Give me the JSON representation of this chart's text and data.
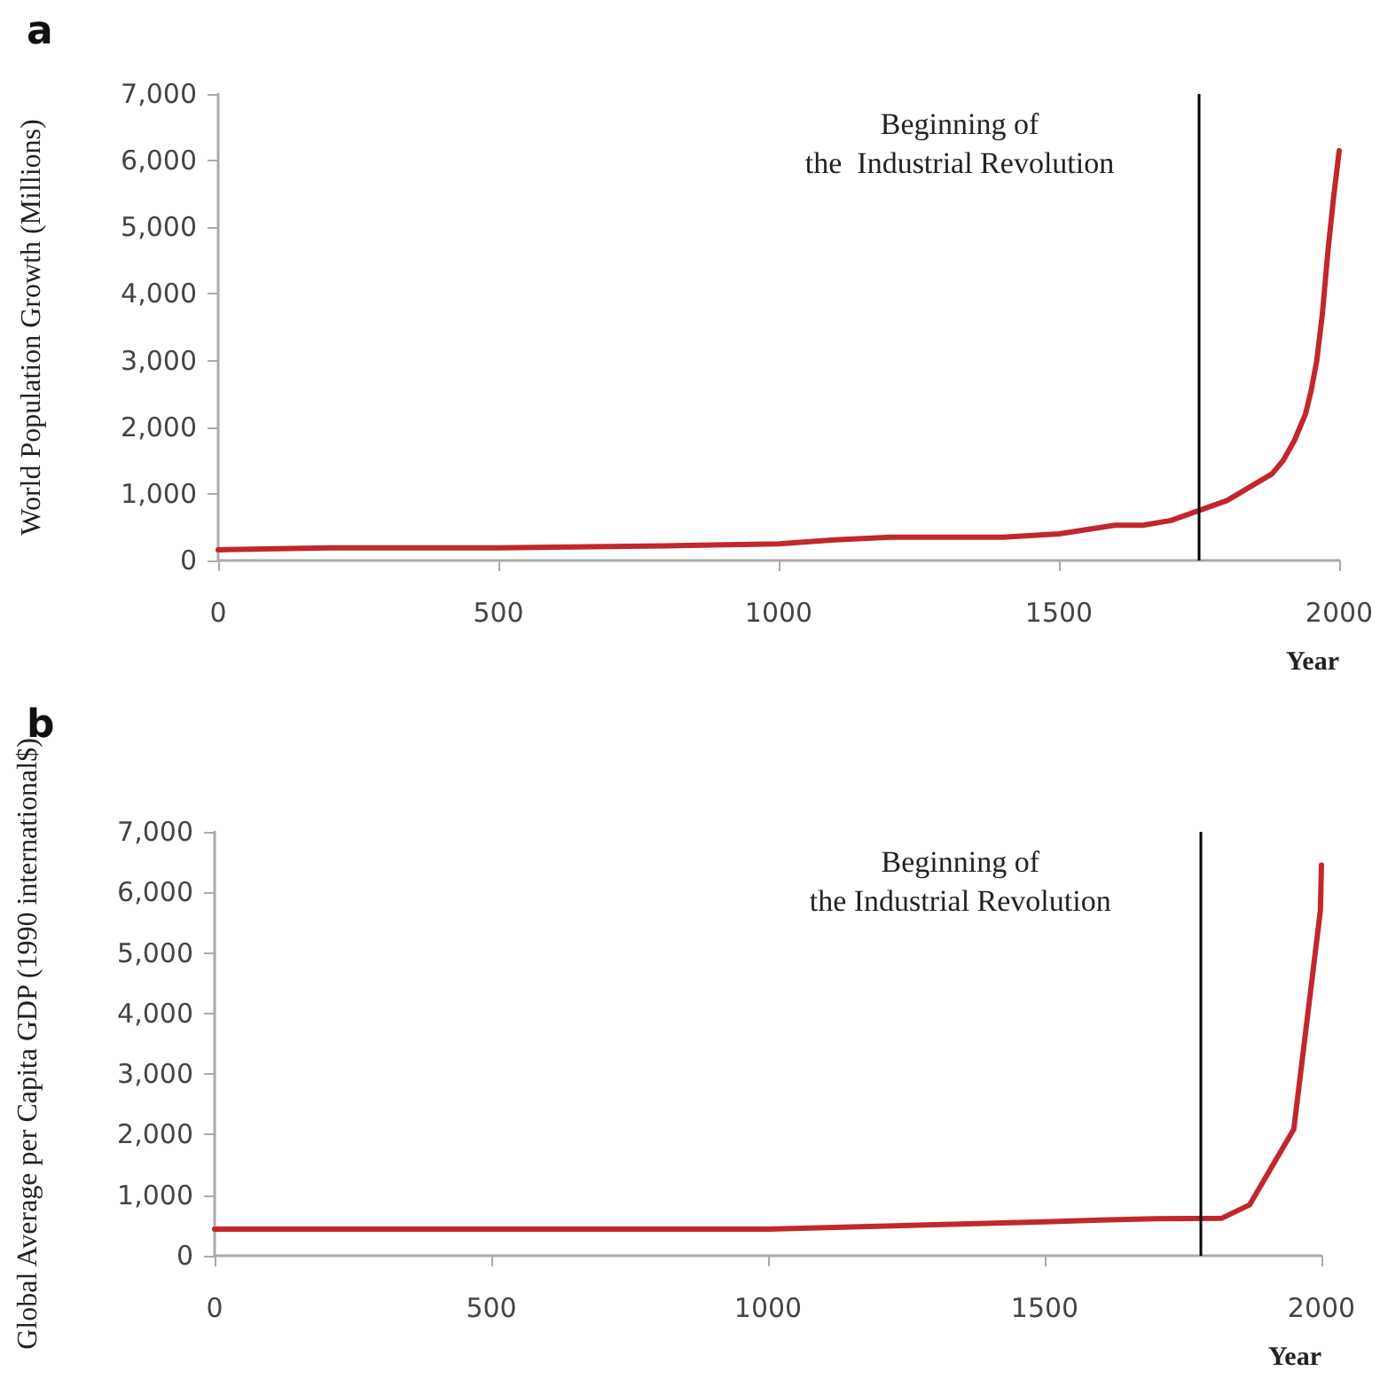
{
  "chart_data": [
    {
      "type": "line",
      "title": "a",
      "xlabel": "Year",
      "ylabel": "World Population Growth (Millions)",
      "x": [
        0,
        200,
        500,
        800,
        1000,
        1100,
        1200,
        1400,
        1500,
        1600,
        1650,
        1700,
        1750,
        1800,
        1850,
        1880,
        1900,
        1920,
        1940,
        1950,
        1960,
        1970,
        1980,
        1990,
        2000
      ],
      "series": [
        {
          "color": "#c1272d",
          "values": [
            160,
            190,
            190,
            220,
            250,
            310,
            350,
            350,
            400,
            530,
            530,
            600,
            750,
            900,
            1150,
            1300,
            1500,
            1800,
            2200,
            2550,
            3000,
            3700,
            4650,
            5450,
            6150
          ]
        }
      ],
      "xlim": [
        0,
        2000
      ],
      "xticks": [
        0,
        500,
        1000,
        1500,
        2000
      ],
      "ylim": [
        0,
        7000
      ],
      "yticks": [
        {
          "value": 0,
          "label": "0"
        },
        {
          "value": 1000,
          "label": "1,000"
        },
        {
          "value": 2000,
          "label": "2,000"
        },
        {
          "value": 3000,
          "label": "3,000"
        },
        {
          "value": 4000,
          "label": "4,000"
        },
        {
          "value": 5000,
          "label": "5,000"
        },
        {
          "value": 6000,
          "label": "6,000"
        },
        {
          "value": 7000,
          "label": "7,000"
        }
      ],
      "ref_lines": [
        {
          "axis": "x",
          "value": 1750,
          "label": "Beginning of\nthe  Industrial Revolution",
          "color": "#000000"
        }
      ],
      "grid": false,
      "marker": "none",
      "line_style": "solid"
    },
    {
      "type": "line",
      "title": "b",
      "xlabel": "Year",
      "ylabel": "Global Average per Capita GDP (1990 international$)",
      "x": [
        0,
        1000,
        1500,
        1600,
        1700,
        1820,
        1870,
        1950,
        1998,
        2000
      ],
      "series": [
        {
          "color": "#c1272d",
          "values": [
            440,
            440,
            560,
            590,
            610,
            620,
            840,
            2090,
            5700,
            6450
          ]
        }
      ],
      "xlim": [
        0,
        2000
      ],
      "xticks": [
        0,
        500,
        1000,
        1500,
        2000
      ],
      "ylim": [
        0,
        7000
      ],
      "yticks": [
        {
          "value": 0,
          "label": "0"
        },
        {
          "value": 1000,
          "label": "1,000"
        },
        {
          "value": 2000,
          "label": "2,000"
        },
        {
          "value": 3000,
          "label": "3,000"
        },
        {
          "value": 4000,
          "label": "4,000"
        },
        {
          "value": 5000,
          "label": "5,000"
        },
        {
          "value": 6000,
          "label": "6,000"
        },
        {
          "value": 7000,
          "label": "7,000"
        }
      ],
      "ref_lines": [
        {
          "axis": "x",
          "value": 1780,
          "label": "Beginning of\nthe Industrial Revolution",
          "color": "#000000"
        }
      ],
      "grid": false,
      "marker": "none",
      "line_style": "solid"
    }
  ]
}
